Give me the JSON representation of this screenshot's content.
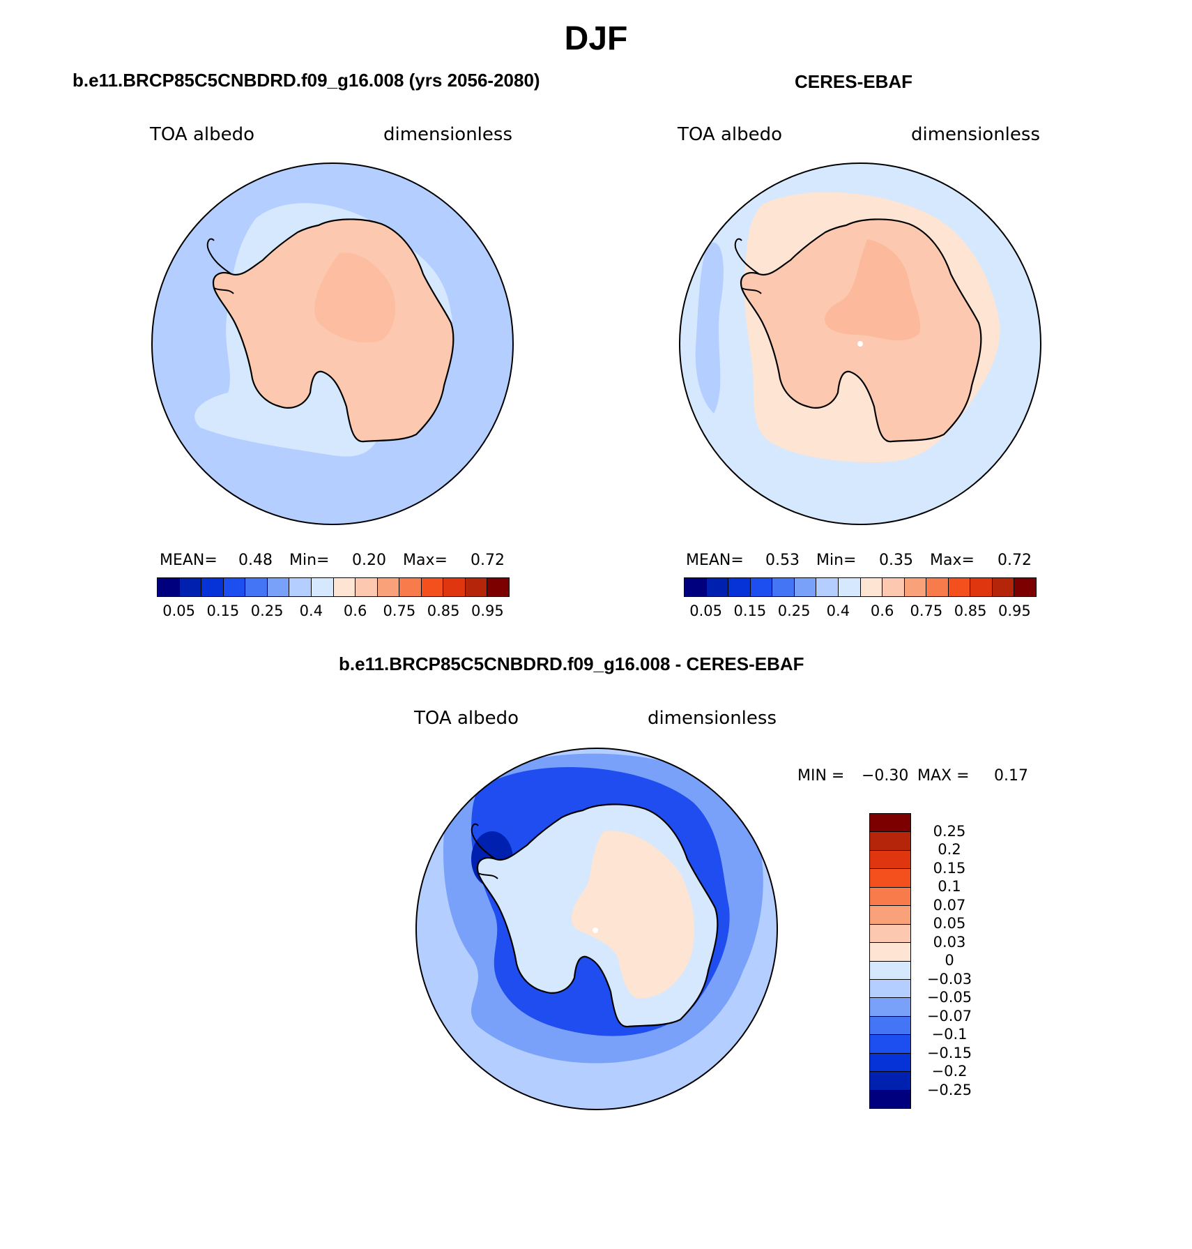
{
  "figure": {
    "title": "DJF"
  },
  "panels": [
    {
      "title": "b.e11.BRCP85C5CNBDRD.f09_g16.008 (yrs 2056-2080)",
      "left_label": "TOA albedo",
      "right_label": "dimensionless",
      "stats": {
        "mean_label": "MEAN=",
        "mean": "0.48",
        "min_label": "Min=",
        "min": "0.20",
        "max_label": "Max=",
        "max": "0.72"
      },
      "ocean_color": "#b3ceff",
      "inner_color": "#d6e8fe",
      "land_color": "#fcc9b0",
      "land_detail_color": "#fbb596"
    },
    {
      "title": "CERES-EBAF",
      "left_label": "TOA albedo",
      "right_label": "dimensionless",
      "stats": {
        "mean_label": "MEAN=",
        "mean": "0.53",
        "min_label": "Min=",
        "min": "0.35",
        "max_label": "Max=",
        "max": "0.72"
      },
      "ocean_color": "#d6e8fe",
      "inner_color": "#fde4d3",
      "land_color": "#fcc9b0",
      "land_detail_color": "#fbb596"
    },
    {
      "title": "b.e11.BRCP85C5CNBDRD.f09_g16.008 - CERES-EBAF",
      "left_label": "TOA albedo",
      "right_label": "dimensionless",
      "stats": {
        "min_label": "MIN =",
        "min": "−0.30",
        "max_label": "MAX =",
        "max": "0.17"
      },
      "ocean_color": "#b3ceff",
      "inner_color": "#1f4df0",
      "land_color": "#d6e8fe",
      "land_detail_color": "#fde4d3"
    }
  ],
  "colorbar_abs": {
    "colors": [
      "#00007f",
      "#0020b0",
      "#0533d8",
      "#1c4ef0",
      "#4375f5",
      "#7aa1f9",
      "#b3ceff",
      "#d6e8fe",
      "#fde4d3",
      "#fcc9b0",
      "#f9a27a",
      "#f87b4b",
      "#f4501e",
      "#df3610",
      "#b4250a",
      "#7d0000"
    ],
    "tick_labels": [
      "0.05",
      "0.15",
      "0.25",
      "0.4",
      "0.6",
      "0.75",
      "0.85",
      "0.95"
    ]
  },
  "colorbar_diff": {
    "colors": [
      "#7d0000",
      "#b4250a",
      "#df3610",
      "#f4501e",
      "#f87b4b",
      "#f9a27a",
      "#fcc9b0",
      "#fde4d3",
      "#d6e8fe",
      "#b3ceff",
      "#7aa1f9",
      "#4375f5",
      "#1c4ef0",
      "#0533d8",
      "#0020b0",
      "#00007f"
    ],
    "tick_labels": [
      "0.25",
      "0.2",
      "0.15",
      "0.1",
      "0.07",
      "0.05",
      "0.03",
      "0",
      "−0.03",
      "−0.05",
      "−0.07",
      "−0.1",
      "−0.15",
      "−0.2",
      "−0.25"
    ]
  }
}
